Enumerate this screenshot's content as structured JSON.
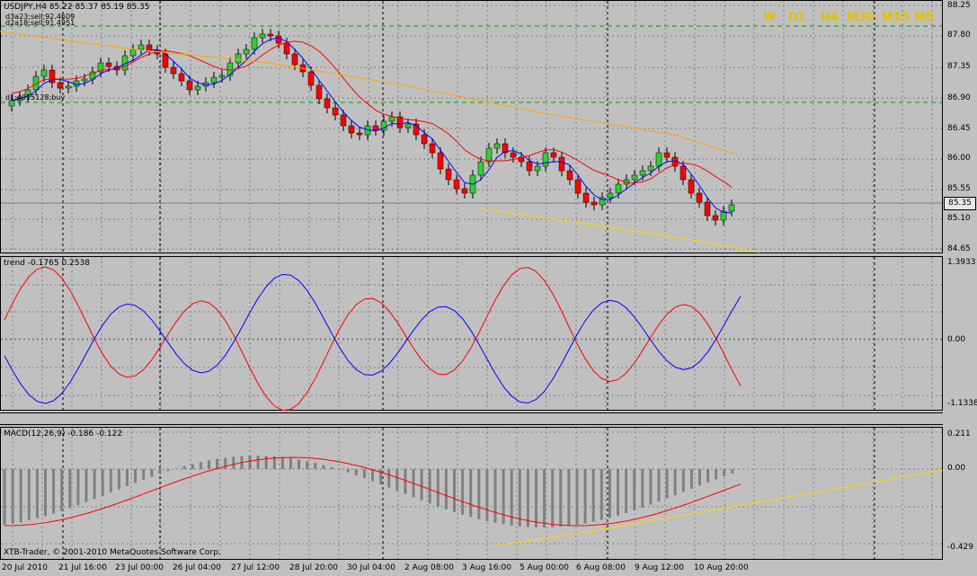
{
  "main_chart": {
    "header": "USDJPY,H4  85.22 85.37 85.19 85.35",
    "labels": [
      "d3a23;sell;92.4609",
      "d2a18;sell;91.4951",
      "d1;4915128;buy"
    ],
    "price_axis": [
      "88.25",
      "87.80",
      "87.35",
      "86.90",
      "86.45",
      "86.00",
      "85.55",
      "85.35",
      "85.10",
      "84.65"
    ],
    "current_price": "85.35",
    "timeframes": [
      "W",
      "D1",
      "H4",
      "M30",
      "M15",
      "M5"
    ]
  },
  "trend_pane": {
    "label": "trend -0.1765 0.2538",
    "axis": [
      "1.3933",
      "0.00",
      "-1.1338"
    ]
  },
  "macd_pane": {
    "label": "MACD(12,26,9) -0.186 -0.122",
    "axis": [
      "0.211",
      "0.00",
      "-0.429"
    ],
    "copyright": "XTB-Trader, © 2001-2010 MetaQuotes Software Corp."
  },
  "time_axis": [
    "20 Jul 2010",
    "21 Jul 16:00",
    "23 Jul 00:00",
    "26 Jul 04:00",
    "27 Jul 12:00",
    "28 Jul 20:00",
    "30 Jul 04:00",
    "2 Aug 08:00",
    "3 Aug 16:00",
    "5 Aug 00:00",
    "6 Aug 08:00",
    "9 Aug 12:00",
    "10 Aug 20:00"
  ],
  "colors": {
    "bull": "#32cd32",
    "bear": "#ff0000",
    "fast_ma": "#0000ff",
    "slow_ma": "#ff0000",
    "long_ma": "#ffa500",
    "trendline": "#ffd700",
    "grid": "#808080",
    "background": "#c0c0c0"
  }
}
